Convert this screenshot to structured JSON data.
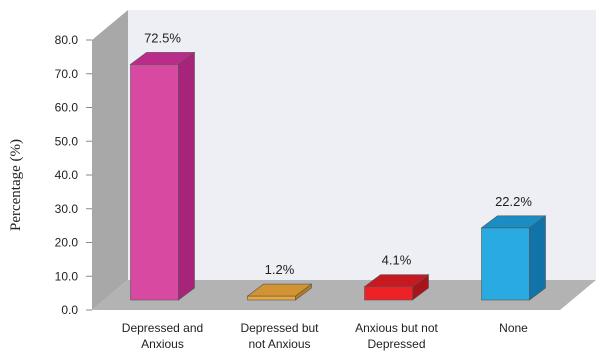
{
  "chart_data": {
    "type": "bar",
    "ylabel": "Percentage (%)",
    "ylim": [
      0,
      80
    ],
    "yticks": [
      "0.0",
      "10.0",
      "20.0",
      "30.0",
      "40.0",
      "50.0",
      "60.0",
      "70.0",
      "80.0"
    ],
    "categories": [
      [
        "Depressed and",
        "Anxious"
      ],
      [
        "Depressed but",
        "not Anxious"
      ],
      [
        "Anxious but not",
        "Depressed"
      ],
      [
        "None"
      ]
    ],
    "values": [
      72.5,
      1.2,
      4.1,
      22.2
    ],
    "data_labels": [
      "72.5%",
      "1.2%",
      "4.1%",
      "22.2%"
    ],
    "colors": [
      {
        "front": "#d84aa1",
        "side": "#a8237a",
        "top": "#b82c8a"
      },
      {
        "front": "#e9a83d",
        "side": "#b67d1e",
        "top": "#d29332"
      },
      {
        "front": "#ec2227",
        "side": "#a8141a",
        "top": "#c71a20"
      },
      {
        "front": "#29abe2",
        "side": "#1273a8",
        "top": "#1a8dc5"
      }
    ],
    "wall_color": "#eeeef5",
    "side_wall_color": "#a8a8a8",
    "floor_color": "#b3b3b3"
  }
}
